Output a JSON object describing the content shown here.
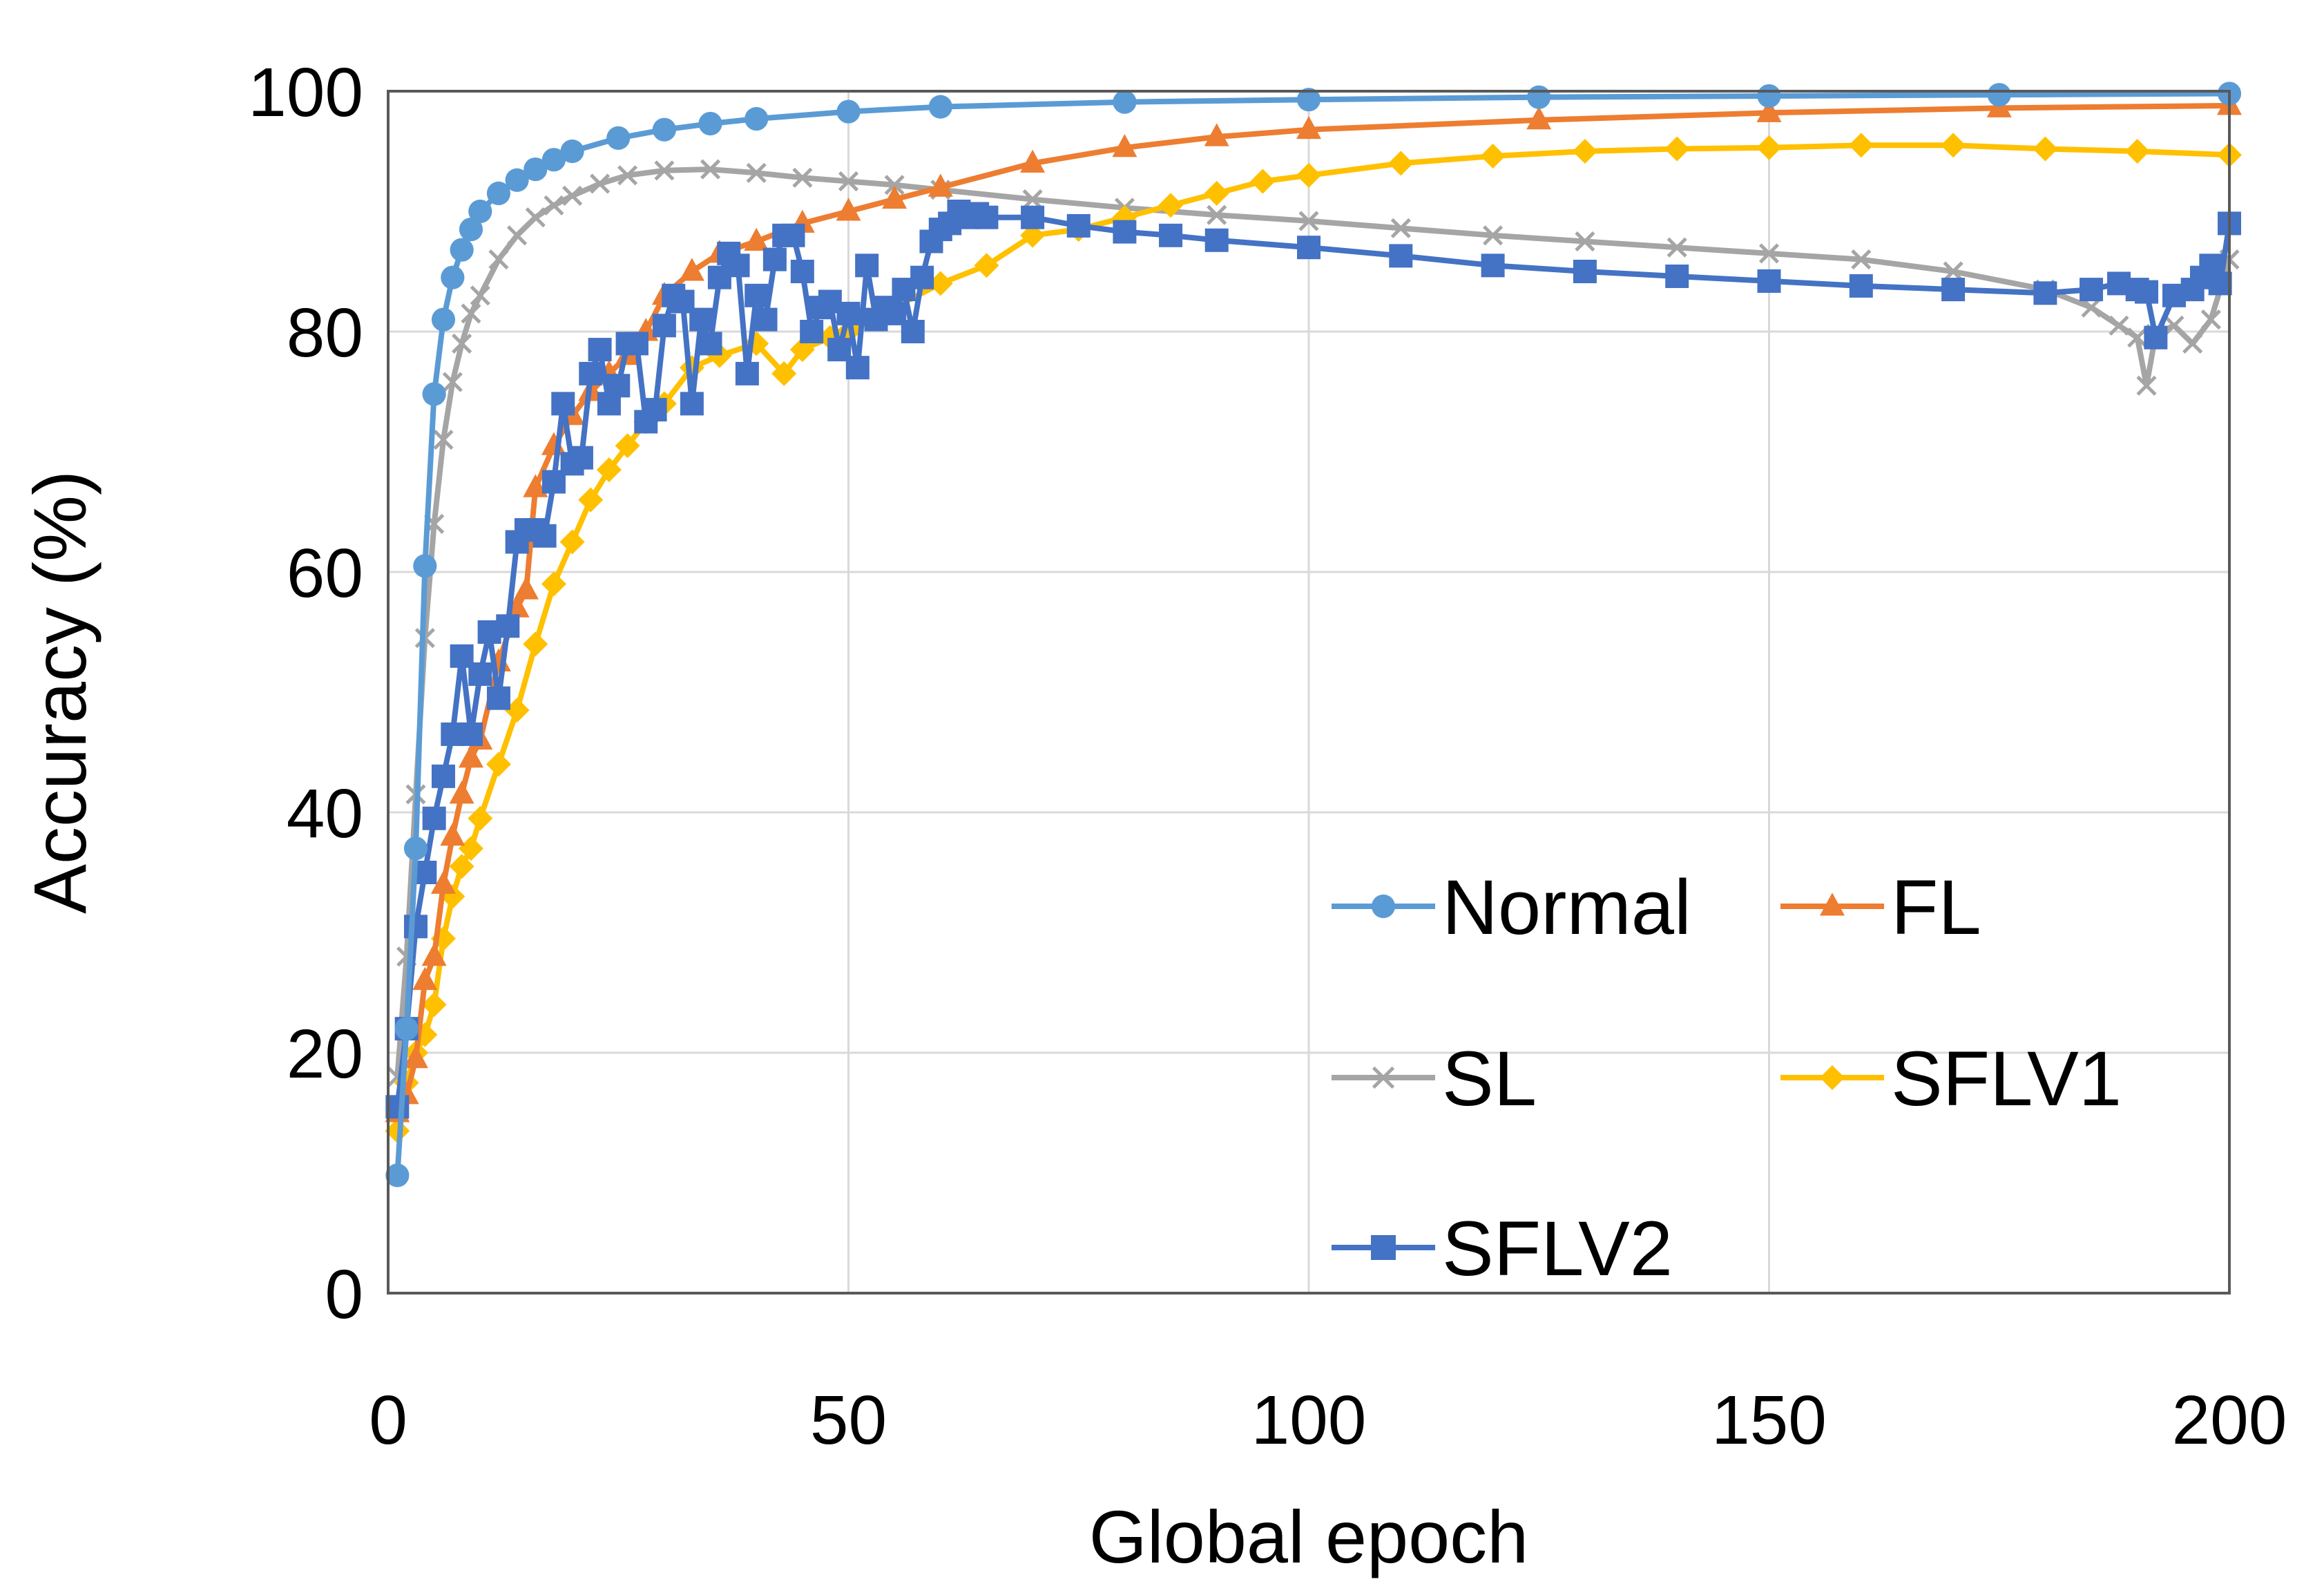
{
  "chart_data": {
    "type": "line",
    "xlabel": "Global epoch",
    "ylabel": "Accuracy (%)",
    "xlim": [
      0,
      200
    ],
    "ylim": [
      0,
      100
    ],
    "x_ticks": [
      "0",
      "50",
      "100",
      "150",
      "200"
    ],
    "y_ticks": [
      "0",
      "20",
      "40",
      "60",
      "80",
      "100"
    ],
    "grid": true,
    "legend_position": "bottom-right",
    "series": [
      {
        "name": "Normal",
        "color": "#5B9BD5",
        "marker": "circle",
        "x": [
          1,
          2,
          3,
          4,
          5,
          6,
          7,
          8,
          9,
          10,
          12,
          14,
          16,
          18,
          20,
          25,
          30,
          35,
          40,
          50,
          60,
          80,
          100,
          125,
          150,
          175,
          200
        ],
        "y": [
          9.8,
          22,
          37,
          60.5,
          74.8,
          81,
          84.5,
          86.8,
          88.5,
          90,
          91.5,
          92.6,
          93.5,
          94.3,
          95,
          96.1,
          96.8,
          97.3,
          97.7,
          98.3,
          98.7,
          99.1,
          99.3,
          99.5,
          99.6,
          99.7,
          99.8
        ]
      },
      {
        "name": "FL",
        "color": "#ED7D31",
        "marker": "triangle",
        "x": [
          1,
          2,
          3,
          4,
          5,
          6,
          7,
          8,
          9,
          10,
          12,
          14,
          15,
          16,
          18,
          20,
          22,
          24,
          26,
          28,
          30,
          33,
          36,
          40,
          45,
          50,
          55,
          60,
          70,
          80,
          90,
          100,
          125,
          150,
          175,
          200
        ],
        "y": [
          15,
          16.5,
          19.5,
          26,
          28,
          34,
          38,
          41.5,
          44.5,
          46,
          52.5,
          57,
          58.5,
          67,
          70.5,
          73,
          75,
          76.5,
          78,
          80,
          83,
          85,
          86.5,
          87.5,
          89,
          90,
          91,
          92,
          94,
          95.3,
          96.2,
          96.8,
          97.6,
          98.2,
          98.6,
          98.8
        ]
      },
      {
        "name": "SL",
        "color": "#A5A5A5",
        "marker": "x",
        "x": [
          1,
          2,
          3,
          4,
          5,
          6,
          7,
          8,
          9,
          10,
          12,
          14,
          16,
          18,
          20,
          23,
          26,
          30,
          35,
          40,
          45,
          50,
          55,
          60,
          70,
          80,
          90,
          100,
          110,
          120,
          130,
          140,
          150,
          160,
          170,
          180,
          185,
          188,
          190,
          191,
          192,
          194,
          196,
          198,
          200
        ],
        "y": [
          18,
          28,
          41.5,
          54.5,
          64,
          71,
          75.8,
          79,
          81.5,
          83,
          86,
          88,
          89.5,
          90.5,
          91.3,
          92.3,
          93,
          93.4,
          93.5,
          93.2,
          92.8,
          92.5,
          92.2,
          91.8,
          91,
          90.3,
          89.7,
          89.2,
          88.6,
          88,
          87.5,
          87,
          86.5,
          86,
          85,
          83.5,
          82,
          80.5,
          79.5,
          75.5,
          79.8,
          80.5,
          79,
          81,
          86
        ]
      },
      {
        "name": "SFLV1",
        "color": "#FFC000",
        "marker": "diamond",
        "x": [
          1,
          2,
          3,
          4,
          5,
          6,
          7,
          8,
          9,
          10,
          12,
          14,
          16,
          18,
          20,
          22,
          24,
          26,
          28,
          30,
          33,
          36,
          40,
          43,
          45,
          48,
          50,
          55,
          60,
          65,
          70,
          75,
          80,
          85,
          90,
          95,
          100,
          110,
          120,
          130,
          140,
          150,
          160,
          170,
          180,
          190,
          200
        ],
        "y": [
          13.5,
          17.5,
          20,
          21.5,
          24,
          29.5,
          33,
          35.5,
          37,
          39.5,
          44,
          48.5,
          54,
          59,
          62.5,
          66,
          68.5,
          70.5,
          72.5,
          74,
          77,
          78,
          79,
          76.5,
          78.5,
          79.5,
          80,
          82,
          84,
          85.5,
          88,
          88.5,
          89.5,
          90.5,
          91.5,
          92.5,
          93,
          94,
          94.6,
          95,
          95.2,
          95.3,
          95.5,
          95.5,
          95.2,
          95,
          94.7
        ]
      },
      {
        "name": "SFLV2",
        "color": "#4472C4",
        "marker": "square",
        "x": [
          1,
          2,
          3,
          4,
          5,
          6,
          7,
          8,
          9,
          10,
          11,
          12,
          13,
          14,
          15,
          16,
          17,
          18,
          19,
          20,
          21,
          22,
          23,
          24,
          25,
          26,
          27,
          28,
          29,
          30,
          31,
          32,
          33,
          34,
          35,
          36,
          37,
          38,
          39,
          40,
          41,
          42,
          43,
          44,
          45,
          46,
          47,
          48,
          49,
          50,
          51,
          52,
          53,
          54,
          55,
          56,
          57,
          58,
          59,
          60,
          61,
          62,
          63,
          64,
          65,
          70,
          75,
          80,
          85,
          90,
          100,
          110,
          120,
          130,
          140,
          150,
          160,
          170,
          180,
          185,
          188,
          190,
          191,
          192,
          194,
          196,
          197,
          198,
          199,
          200
        ],
        "y": [
          15.5,
          22,
          30.5,
          35,
          39.5,
          43,
          46.5,
          53,
          46.5,
          51.5,
          55,
          49.5,
          55.5,
          62.5,
          63.5,
          63.5,
          63,
          67.5,
          74,
          69,
          69.5,
          76.5,
          78.5,
          74,
          75.5,
          79,
          79,
          72.5,
          73.5,
          80.5,
          83,
          82.5,
          74,
          81,
          79,
          84.5,
          86.5,
          85.5,
          76.5,
          83,
          81,
          86,
          88,
          88,
          85,
          80,
          82,
          82.5,
          78.5,
          81.5,
          77,
          85.5,
          81,
          82,
          81.5,
          83.5,
          80,
          84.5,
          87.5,
          88.5,
          89,
          90,
          89.5,
          89.8,
          89.5,
          89.5,
          88.8,
          88.3,
          88,
          87.6,
          87,
          86.3,
          85.5,
          85,
          84.6,
          84.2,
          83.8,
          83.5,
          83.2,
          83.5,
          84,
          83.5,
          83.3,
          79.5,
          83,
          83.5,
          84.5,
          85.5,
          84,
          89
        ]
      }
    ]
  }
}
